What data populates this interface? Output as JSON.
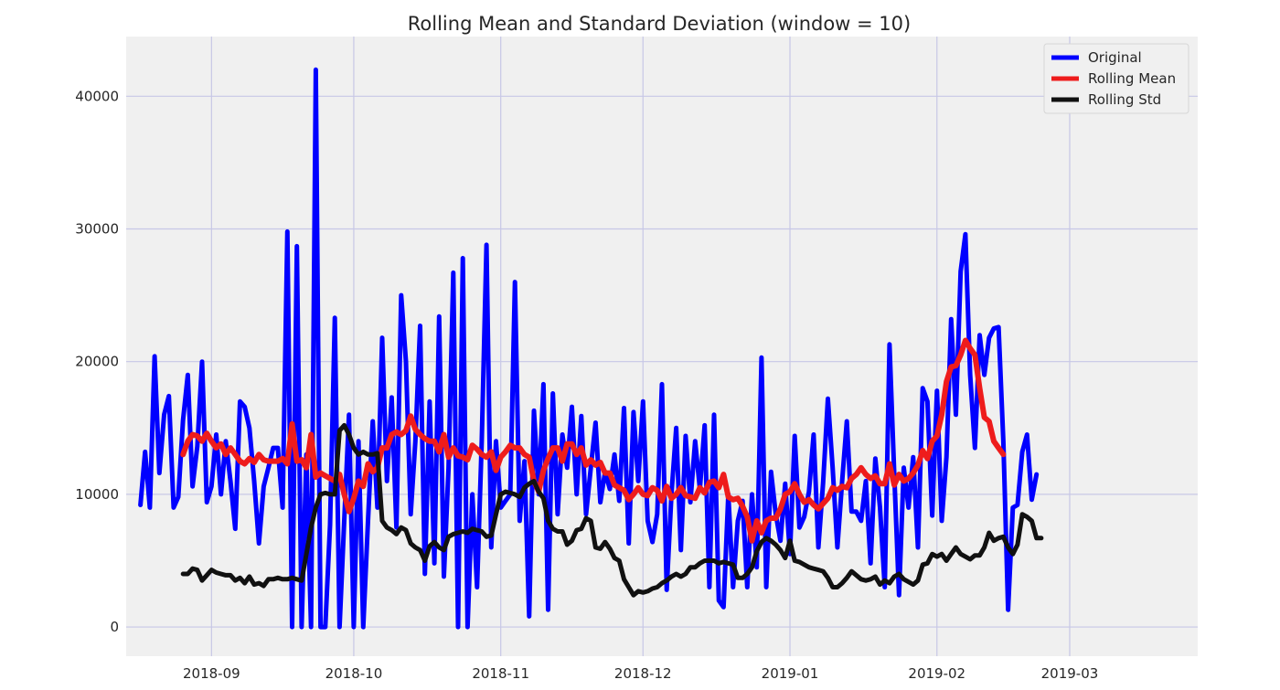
{
  "chart_data": {
    "type": "line",
    "title": "Rolling Mean and Standard Deviation (window = 10)",
    "xlabel": "",
    "ylabel": "",
    "x_ticks": [
      {
        "date": "2018-09-01",
        "label": "2018-09"
      },
      {
        "date": "2018-10-01",
        "label": "2018-10"
      },
      {
        "date": "2018-11-01",
        "label": "2018-11"
      },
      {
        "date": "2018-12-01",
        "label": "2018-12"
      },
      {
        "date": "2019-01-01",
        "label": "2019-01"
      },
      {
        "date": "2019-02-01",
        "label": "2019-02"
      },
      {
        "date": "2019-03-01",
        "label": "2019-03"
      }
    ],
    "y_ticks": [
      0,
      10000,
      20000,
      30000,
      40000
    ],
    "xlim": [
      "2018-08-14",
      "2019-03-28"
    ],
    "ylim": [
      -2200,
      44500
    ],
    "grid": true,
    "background": "#f0f0f0",
    "grid_color": "#c7c7e6",
    "legend_position": "top-right",
    "series": [
      {
        "name": "Original",
        "color": "#0000ff",
        "start_date": "2018-08-17",
        "values": [
          9200,
          13200,
          9000,
          20400,
          11600,
          16000,
          17400,
          9000,
          9800,
          15600,
          19000,
          10600,
          13600,
          20000,
          9400,
          10600,
          14500,
          10000,
          14000,
          11000,
          7400,
          17000,
          16600,
          15000,
          11000,
          6300,
          10600,
          12000,
          13500,
          13500,
          9000,
          29800,
          0,
          28700,
          0,
          13000,
          0,
          42000,
          0,
          0,
          7700,
          23300,
          0,
          8000,
          16000,
          0,
          14000,
          0,
          8000,
          15500,
          9000,
          21800,
          11000,
          17300,
          7500,
          25000,
          20000,
          8500,
          14000,
          22700,
          4000,
          17000,
          4800,
          23400,
          3800,
          12000,
          26700,
          0,
          27800,
          0,
          10000,
          3000,
          14000,
          28800,
          6000,
          14000,
          9000,
          9500,
          10000,
          26000,
          8000,
          12500,
          800,
          16300,
          10000,
          18300,
          1300,
          17600,
          8500,
          14500,
          12000,
          16600,
          10000,
          15900,
          8500,
          12000,
          15400,
          9400,
          11700,
          10400,
          13000,
          9500,
          16500,
          6300,
          16200,
          11000,
          17000,
          8000,
          6400,
          8500,
          18300,
          2800,
          10000,
          15000,
          5800,
          14400,
          9400,
          14000,
          10400,
          15200,
          3000,
          16000,
          2000,
          1500,
          10000,
          3000,
          8000,
          9500,
          3000,
          10000,
          4500,
          20300,
          3000,
          11700,
          8500,
          6500,
          10800,
          5500,
          14400,
          7500,
          8300,
          10200,
          14500,
          6000,
          10900,
          17200,
          12000,
          6000,
          11000,
          15500,
          8700,
          8700,
          8000,
          11000,
          4800,
          12700,
          9000,
          3000,
          21300,
          11500,
          2400,
          12000,
          9000,
          12800,
          6000,
          18000,
          17000,
          8400,
          17800,
          8000,
          12800,
          23200,
          16000,
          26800,
          29600,
          19000,
          13500,
          22000,
          19000,
          21800,
          22500,
          22600,
          14000,
          1300,
          9000,
          9200,
          13200,
          14500,
          9600,
          11500
        ],
        "width": 5
      },
      {
        "name": "Rolling Mean",
        "color": "#ee1c1c",
        "start_date": "2018-08-26",
        "values": [
          13000,
          14000,
          14500,
          14400,
          14000,
          14600,
          14000,
          13500,
          13800,
          13000,
          13500,
          13000,
          12500,
          12300,
          12700,
          12400,
          13000,
          12600,
          12500,
          12500,
          12500,
          12700,
          12300,
          15300,
          12500,
          12600,
          12000,
          14500,
          11300,
          11600,
          11400,
          11200,
          11000,
          11500,
          10000,
          8700,
          9700,
          11000,
          10600,
          12300,
          11700,
          12000,
          13500,
          13500,
          14500,
          14700,
          14500,
          14800,
          15900,
          14900,
          14500,
          14200,
          14000,
          14000,
          13200,
          14500,
          12800,
          13500,
          12900,
          12800,
          12600,
          13700,
          13400,
          13000,
          12800,
          13200,
          11800,
          12800,
          13200,
          13700,
          13500,
          13500,
          13000,
          12800,
          11000,
          10200,
          11800,
          12700,
          13500,
          13500,
          12500,
          13800,
          13800,
          13000,
          13500,
          12200,
          12600,
          12200,
          12400,
          11600,
          11600,
          10700,
          10500,
          10300,
          9600,
          10000,
          10500,
          10000,
          9900,
          10500,
          10300,
          9500,
          10600,
          9700,
          10000,
          10500,
          9900,
          9800,
          9700,
          10500,
          10100,
          10900,
          11000,
          10500,
          11500,
          9800,
          9600,
          9700,
          9100,
          8300,
          6500,
          8000,
          7100,
          8000,
          8200,
          8200,
          8900,
          10000,
          10200,
          10800,
          10000,
          9400,
          9600,
          9200,
          8900,
          9300,
          9700,
          10500,
          10300,
          10600,
          10500,
          11200,
          11500,
          12000,
          11500,
          11200,
          11400,
          10800,
          10800,
          12300,
          10700,
          11500,
          11000,
          11200,
          11600,
          12200,
          13300,
          12700,
          14000,
          14400,
          16000,
          18500,
          19600,
          19700,
          20500,
          21600,
          21000,
          20500,
          18000,
          15800,
          15500,
          14000,
          13500,
          13000
        ],
        "width": 6
      },
      {
        "name": "Rolling Std",
        "color": "#111111",
        "start_date": "2018-08-26",
        "values": [
          4000,
          4000,
          4400,
          4300,
          3500,
          3900,
          4300,
          4100,
          4000,
          3900,
          3900,
          3500,
          3700,
          3300,
          3800,
          3200,
          3300,
          3100,
          3600,
          3600,
          3700,
          3600,
          3600,
          3700,
          3600,
          3500,
          5500,
          7500,
          9000,
          10000,
          10100,
          10000,
          10000,
          14800,
          15200,
          14500,
          13500,
          13000,
          13200,
          13000,
          13000,
          13100,
          8000,
          7500,
          7300,
          7000,
          7500,
          7300,
          6300,
          6000,
          5800,
          5000,
          6100,
          6400,
          6000,
          5800,
          6800,
          7000,
          7100,
          7200,
          7100,
          7400,
          7300,
          7200,
          6800,
          6900,
          8500,
          10000,
          10200,
          10100,
          10000,
          9800,
          10500,
          10800,
          11000,
          10200,
          9700,
          8000,
          7400,
          7200,
          7200,
          6200,
          6500,
          7300,
          7400,
          8200,
          8000,
          6000,
          5900,
          6400,
          5900,
          5200,
          5000,
          3600,
          3000,
          2400,
          2700,
          2600,
          2700,
          2900,
          3000,
          3300,
          3500,
          3800,
          4000,
          3800,
          4000,
          4500,
          4500,
          4800,
          5000,
          5000,
          5000,
          4800,
          4900,
          4800,
          4700,
          3700,
          3700,
          4000,
          4500,
          5700,
          6400,
          6700,
          6500,
          6200,
          5800,
          5200,
          6500,
          5000,
          4900,
          4700,
          4500,
          4400,
          4300,
          4200,
          3700,
          3000,
          3000,
          3300,
          3700,
          4200,
          3900,
          3600,
          3500,
          3600,
          3800,
          3200,
          3500,
          3300,
          3800,
          4000,
          3600,
          3400,
          3200,
          3500,
          4700,
          4800,
          5500,
          5300,
          5500,
          5000,
          5500,
          6000,
          5500,
          5300,
          5100,
          5400,
          5400,
          6000,
          7100,
          6500,
          6700,
          6800,
          6000,
          5500,
          6200,
          8500,
          8300,
          8000,
          6700,
          6700
        ],
        "width": 5
      }
    ]
  }
}
